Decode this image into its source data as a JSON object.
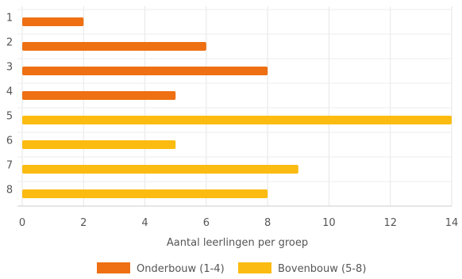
{
  "chart_data": {
    "type": "bar",
    "orientation": "horizontal",
    "categories": [
      "1",
      "2",
      "3",
      "4",
      "5",
      "6",
      "7",
      "8"
    ],
    "series": [
      {
        "name": "Onderbouw (1-4)",
        "color": "#ee7013",
        "values": [
          2,
          6,
          8,
          5,
          null,
          null,
          null,
          null
        ]
      },
      {
        "name": "Bovenbouw (5-8)",
        "color": "#fbbb10",
        "values": [
          null,
          null,
          null,
          null,
          14,
          5,
          9,
          8
        ]
      }
    ],
    "xlabel": "Aantal leerlingen per groep",
    "ylabel": "",
    "xlim": [
      0,
      14
    ],
    "xticks": [
      "0",
      "2",
      "4",
      "6",
      "8",
      "10",
      "12",
      "14"
    ],
    "grid": true,
    "legend_position": "bottom"
  }
}
